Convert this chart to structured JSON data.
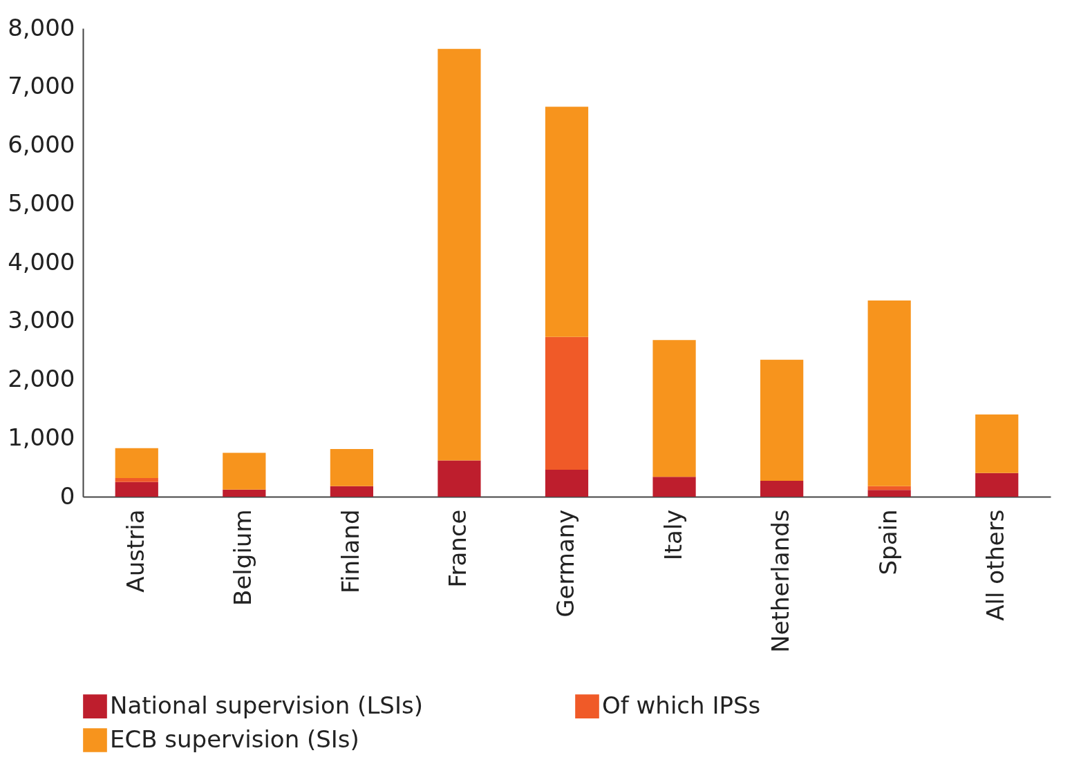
{
  "chart_data": {
    "type": "bar",
    "stacked": true,
    "categories": [
      "Austria",
      "Belgium",
      "Finland",
      "France",
      "Germany",
      "Italy",
      "Netherlands",
      "Spain",
      "All others"
    ],
    "series": [
      {
        "name": "National supervision (LSIs)",
        "color": "#be1e2d",
        "values": [
          250,
          120,
          180,
          620,
          460,
          340,
          270,
          115,
          405
        ]
      },
      {
        "name": "Of which IPSs",
        "color": "#f05a28",
        "values": [
          70,
          0,
          0,
          0,
          2270,
          0,
          0,
          65,
          0
        ]
      },
      {
        "name": "ECB supervision (SIs)",
        "color": "#f7941d",
        "values": [
          510,
          630,
          635,
          7030,
          3930,
          2335,
          2070,
          3170,
          1000
        ]
      }
    ],
    "ylim": [
      0,
      8000
    ],
    "yticks": [
      {
        "value": 0,
        "label": "0"
      },
      {
        "value": 1000,
        "label": "1,000"
      },
      {
        "value": 2000,
        "label": "2,000"
      },
      {
        "value": 3000,
        "label": "3,000"
      },
      {
        "value": 4000,
        "label": "4,000"
      },
      {
        "value": 5000,
        "label": "5,000"
      },
      {
        "value": 6000,
        "label": "6,000"
      },
      {
        "value": 7000,
        "label": "7,000"
      },
      {
        "value": 8000,
        "label": "8,000"
      }
    ],
    "grid": false,
    "legend": "bottom"
  }
}
